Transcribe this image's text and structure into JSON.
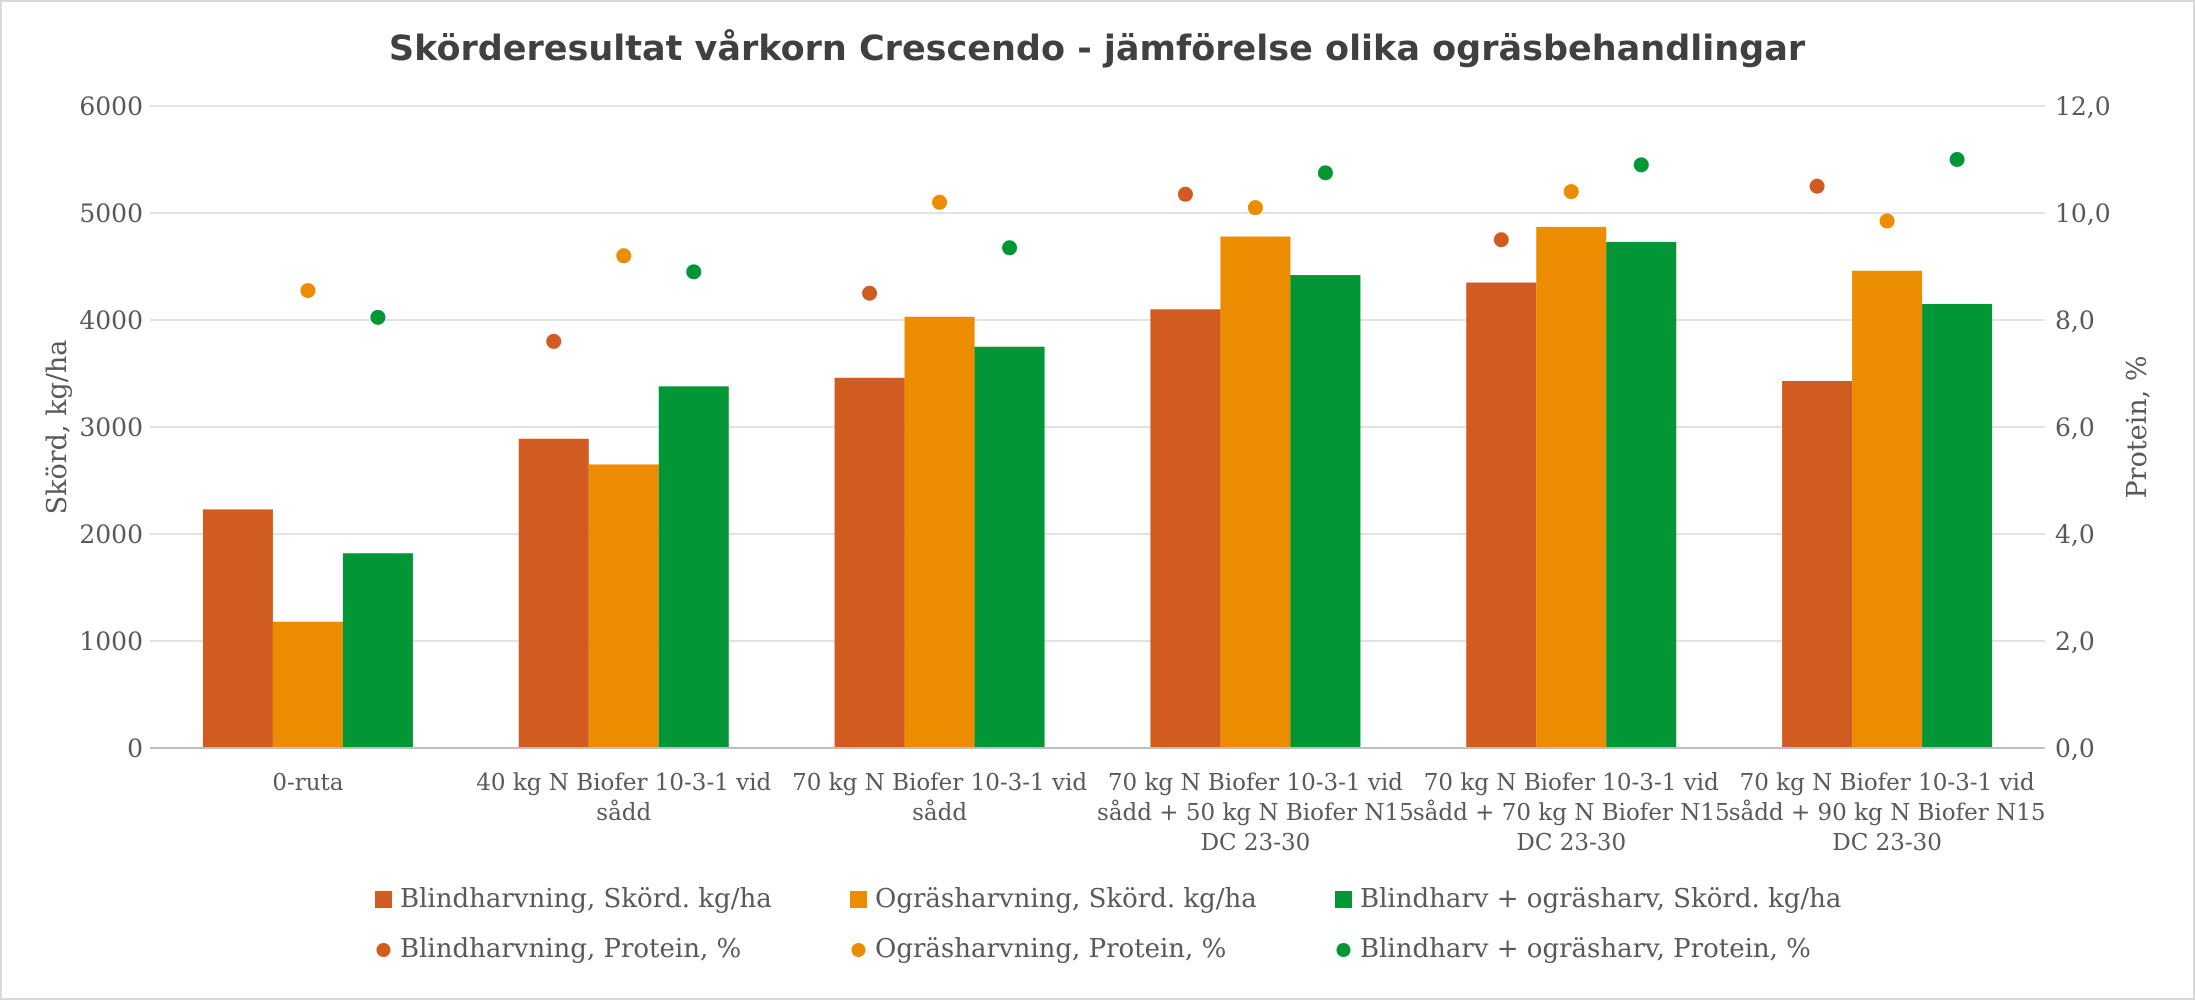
{
  "chart_data": {
    "type": "bar",
    "title": "Skörderesultat vårkorn Crescendo - jämförelse olika ogräsbehandlingar",
    "categories": [
      [
        "0-ruta"
      ],
      [
        "40 kg N Biofer 10-3-1 vid",
        "sådd"
      ],
      [
        "70 kg N Biofer 10-3-1 vid",
        "sådd"
      ],
      [
        "70 kg N Biofer 10-3-1 vid",
        "sådd + 50 kg N Biofer N15",
        "DC 23-30"
      ],
      [
        "70 kg N Biofer 10-3-1 vid",
        "sådd + 70 kg N Biofer N15",
        "DC 23-30"
      ],
      [
        "70 kg N Biofer 10-3-1 vid",
        "sådd + 90 kg N Biofer N15",
        "DC 23-30"
      ]
    ],
    "ylabel": "Skörd, kg/ha",
    "y2label": "Protein, %",
    "ylim": [
      0,
      6000
    ],
    "y2lim": [
      0,
      12
    ],
    "yticks": [
      "0",
      "1000",
      "2000",
      "3000",
      "4000",
      "5000",
      "6000"
    ],
    "y2ticks": [
      "0,0",
      "2,0",
      "4,0",
      "6,0",
      "8,0",
      "10,0",
      "12,0"
    ],
    "grid": true,
    "legend_position": "bottom",
    "bar_series": [
      {
        "name": "Blindharvning, Skörd. kg/ha",
        "color": "#D05C22",
        "values": [
          2230,
          2890,
          3460,
          4100,
          4350,
          3430
        ]
      },
      {
        "name": "Ogräsharvning, Skörd. kg/ha",
        "color": "#EC8C00",
        "values": [
          1180,
          2650,
          4030,
          4780,
          4870,
          4460
        ]
      },
      {
        "name": "Blindharv + ogräsharv, Skörd. kg/ha",
        "color": "#029637",
        "values": [
          1820,
          3380,
          3750,
          4420,
          4730,
          4150
        ]
      }
    ],
    "point_series": [
      {
        "name": "Blindharvning, Protein, %",
        "color": "#D05C22",
        "values": [
          null,
          7.6,
          8.5,
          10.35,
          9.5,
          10.5
        ]
      },
      {
        "name": "Ogräsharvning, Protein, %",
        "color": "#EC8C00",
        "values": [
          8.55,
          9.2,
          10.2,
          10.1,
          10.4,
          9.85
        ]
      },
      {
        "name": "Blindharv + ogräsharv, Protein, %",
        "color": "#029637",
        "values": [
          8.05,
          8.9,
          9.35,
          10.75,
          10.9,
          11.0
        ]
      }
    ]
  }
}
